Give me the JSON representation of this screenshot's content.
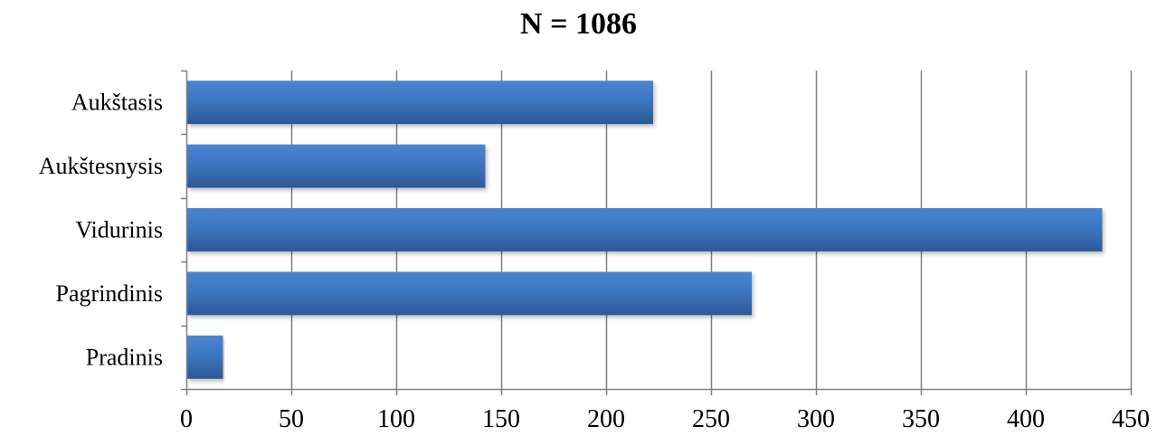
{
  "chart_data": {
    "type": "bar",
    "orientation": "horizontal",
    "title": "N = 1086",
    "categories": [
      "Aukštasis",
      "Aukštesnysis",
      "Vidurinis",
      "Pagrindinis",
      "Pradinis"
    ],
    "values": [
      222,
      142,
      436,
      269,
      17
    ],
    "xlim": [
      0,
      450
    ],
    "xticks": [
      0,
      50,
      100,
      150,
      200,
      250,
      300,
      350,
      400,
      450
    ],
    "grid": "vertical",
    "legend": "none",
    "colors": {
      "bar": "#3a72bc",
      "bar_dark": "#2c5a98",
      "grid": "#808080",
      "axis": "#808080"
    }
  }
}
